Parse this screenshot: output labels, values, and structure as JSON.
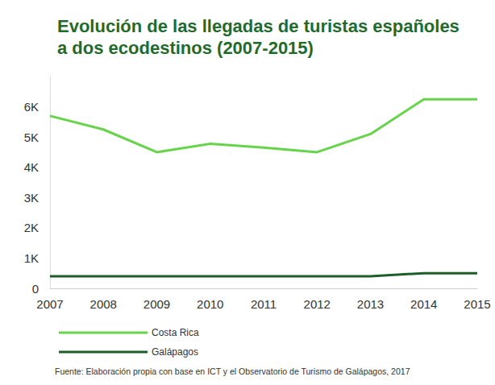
{
  "chart_data": {
    "type": "line",
    "title": "Evolución de las llegadas de turistas españoles\na dos ecodestinos (2007-2015)",
    "source": "Fuente: Elaboración propia con base en ICT y el Observatorio de Turismo de Galápagos, 2017",
    "categories": [
      "2007",
      "2008",
      "2009",
      "2010",
      "2011",
      "2012",
      "2013",
      "2014",
      "2015"
    ],
    "series": [
      {
        "name": "Costa Rica",
        "color": "#66d44a",
        "values": [
          5700,
          5250,
          4500,
          4780,
          4650,
          4500,
          5100,
          6250,
          6250
        ]
      },
      {
        "name": "Galápagos",
        "color": "#1b5e28",
        "values": [
          400,
          400,
          400,
          400,
          400,
          400,
          400,
          500,
          500
        ]
      }
    ],
    "ylim": [
      0,
      7000
    ],
    "yticks": [
      0,
      {
        "value": 1000,
        "label": "1K"
      },
      {
        "value": 2000,
        "label": "2K"
      },
      {
        "value": 3000,
        "label": "3K"
      },
      {
        "value": 4000,
        "label": "4K"
      },
      {
        "value": 5000,
        "label": "5K"
      },
      {
        "value": 6000,
        "label": "6K"
      }
    ],
    "grid": false,
    "legend": "bottom-left"
  }
}
